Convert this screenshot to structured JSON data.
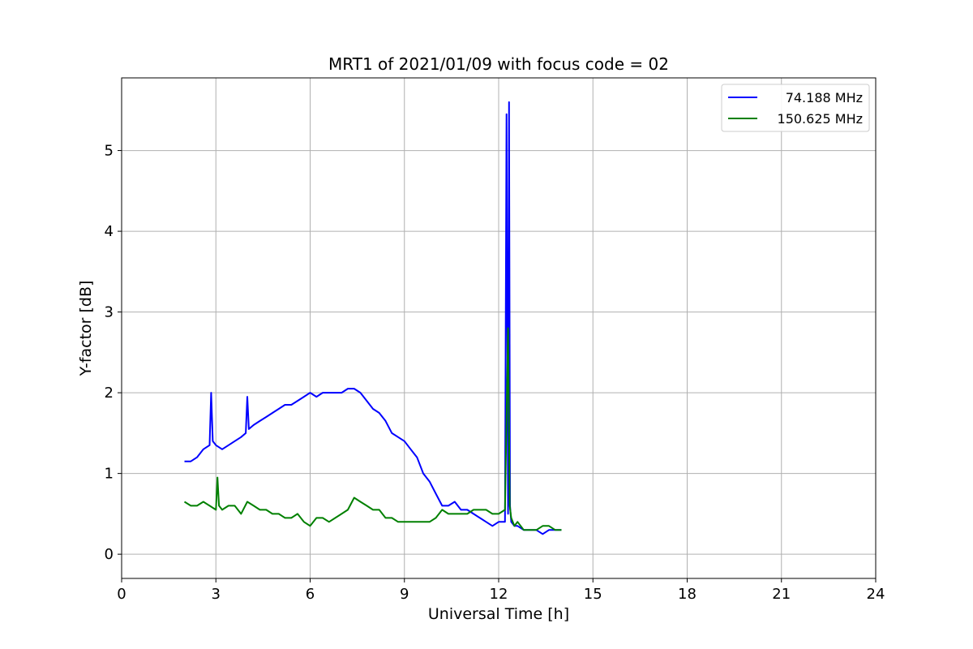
{
  "chart_data": {
    "type": "line",
    "title": "MRT1 of 2021/01/09 with focus code = 02",
    "xlabel": "Universal Time [h]",
    "ylabel": "Y-factor [dB]",
    "xlim": [
      0,
      24
    ],
    "ylim": [
      -0.3,
      5.9
    ],
    "xticks": [
      0,
      3,
      6,
      9,
      12,
      15,
      18,
      21,
      24
    ],
    "yticks": [
      0,
      1,
      2,
      3,
      4,
      5
    ],
    "grid": true,
    "legend_position": "top-right",
    "series": [
      {
        "name": "74.188 MHz",
        "color": "#0000ff",
        "x": [
          2.0,
          2.2,
          2.4,
          2.6,
          2.8,
          2.85,
          2.9,
          3.0,
          3.2,
          3.4,
          3.6,
          3.8,
          3.95,
          4.0,
          4.05,
          4.2,
          4.4,
          4.6,
          4.8,
          5.0,
          5.2,
          5.4,
          5.6,
          5.8,
          6.0,
          6.2,
          6.4,
          6.6,
          6.8,
          7.0,
          7.2,
          7.4,
          7.6,
          7.8,
          8.0,
          8.2,
          8.4,
          8.6,
          8.8,
          9.0,
          9.2,
          9.4,
          9.6,
          9.8,
          10.0,
          10.2,
          10.4,
          10.6,
          10.8,
          11.0,
          11.2,
          11.4,
          11.6,
          11.8,
          12.0,
          12.2,
          12.25,
          12.3,
          12.33,
          12.36,
          12.4,
          12.5,
          12.6,
          12.8,
          13.0,
          13.2,
          13.4,
          13.6,
          13.8,
          14.0
        ],
        "y": [
          1.15,
          1.15,
          1.2,
          1.3,
          1.35,
          2.0,
          1.4,
          1.35,
          1.3,
          1.35,
          1.4,
          1.45,
          1.5,
          1.95,
          1.55,
          1.6,
          1.65,
          1.7,
          1.75,
          1.8,
          1.85,
          1.85,
          1.9,
          1.95,
          2.0,
          1.95,
          2.0,
          2.0,
          2.0,
          2.0,
          2.05,
          2.05,
          2.0,
          1.9,
          1.8,
          1.75,
          1.65,
          1.5,
          1.45,
          1.4,
          1.3,
          1.2,
          1.0,
          0.9,
          0.75,
          0.6,
          0.6,
          0.65,
          0.55,
          0.55,
          0.5,
          0.45,
          0.4,
          0.35,
          0.4,
          0.4,
          5.45,
          0.5,
          5.6,
          0.6,
          0.4,
          0.35,
          0.35,
          0.3,
          0.3,
          0.3,
          0.25,
          0.3,
          0.3,
          0.3
        ]
      },
      {
        "name": "150.625 MHz",
        "color": "#008000",
        "x": [
          2.0,
          2.2,
          2.4,
          2.6,
          2.8,
          3.0,
          3.05,
          3.1,
          3.2,
          3.4,
          3.6,
          3.8,
          4.0,
          4.2,
          4.4,
          4.6,
          4.8,
          5.0,
          5.2,
          5.4,
          5.6,
          5.8,
          6.0,
          6.2,
          6.4,
          6.6,
          6.8,
          7.0,
          7.2,
          7.4,
          7.6,
          7.8,
          8.0,
          8.2,
          8.4,
          8.6,
          8.8,
          9.0,
          9.2,
          9.4,
          9.6,
          9.8,
          10.0,
          10.2,
          10.4,
          10.6,
          10.8,
          11.0,
          11.2,
          11.4,
          11.6,
          11.8,
          12.0,
          12.2,
          12.3,
          12.35,
          12.4,
          12.5,
          12.6,
          12.8,
          13.0,
          13.2,
          13.4,
          13.6,
          13.8,
          14.0
        ],
        "y": [
          0.65,
          0.6,
          0.6,
          0.65,
          0.6,
          0.55,
          0.95,
          0.6,
          0.55,
          0.6,
          0.6,
          0.5,
          0.65,
          0.6,
          0.55,
          0.55,
          0.5,
          0.5,
          0.45,
          0.45,
          0.5,
          0.4,
          0.35,
          0.45,
          0.45,
          0.4,
          0.45,
          0.5,
          0.55,
          0.7,
          0.65,
          0.6,
          0.55,
          0.55,
          0.45,
          0.45,
          0.4,
          0.4,
          0.4,
          0.4,
          0.4,
          0.4,
          0.45,
          0.55,
          0.5,
          0.5,
          0.5,
          0.5,
          0.55,
          0.55,
          0.55,
          0.5,
          0.5,
          0.55,
          2.8,
          0.6,
          0.45,
          0.35,
          0.4,
          0.3,
          0.3,
          0.3,
          0.35,
          0.35,
          0.3,
          0.3
        ]
      }
    ]
  }
}
